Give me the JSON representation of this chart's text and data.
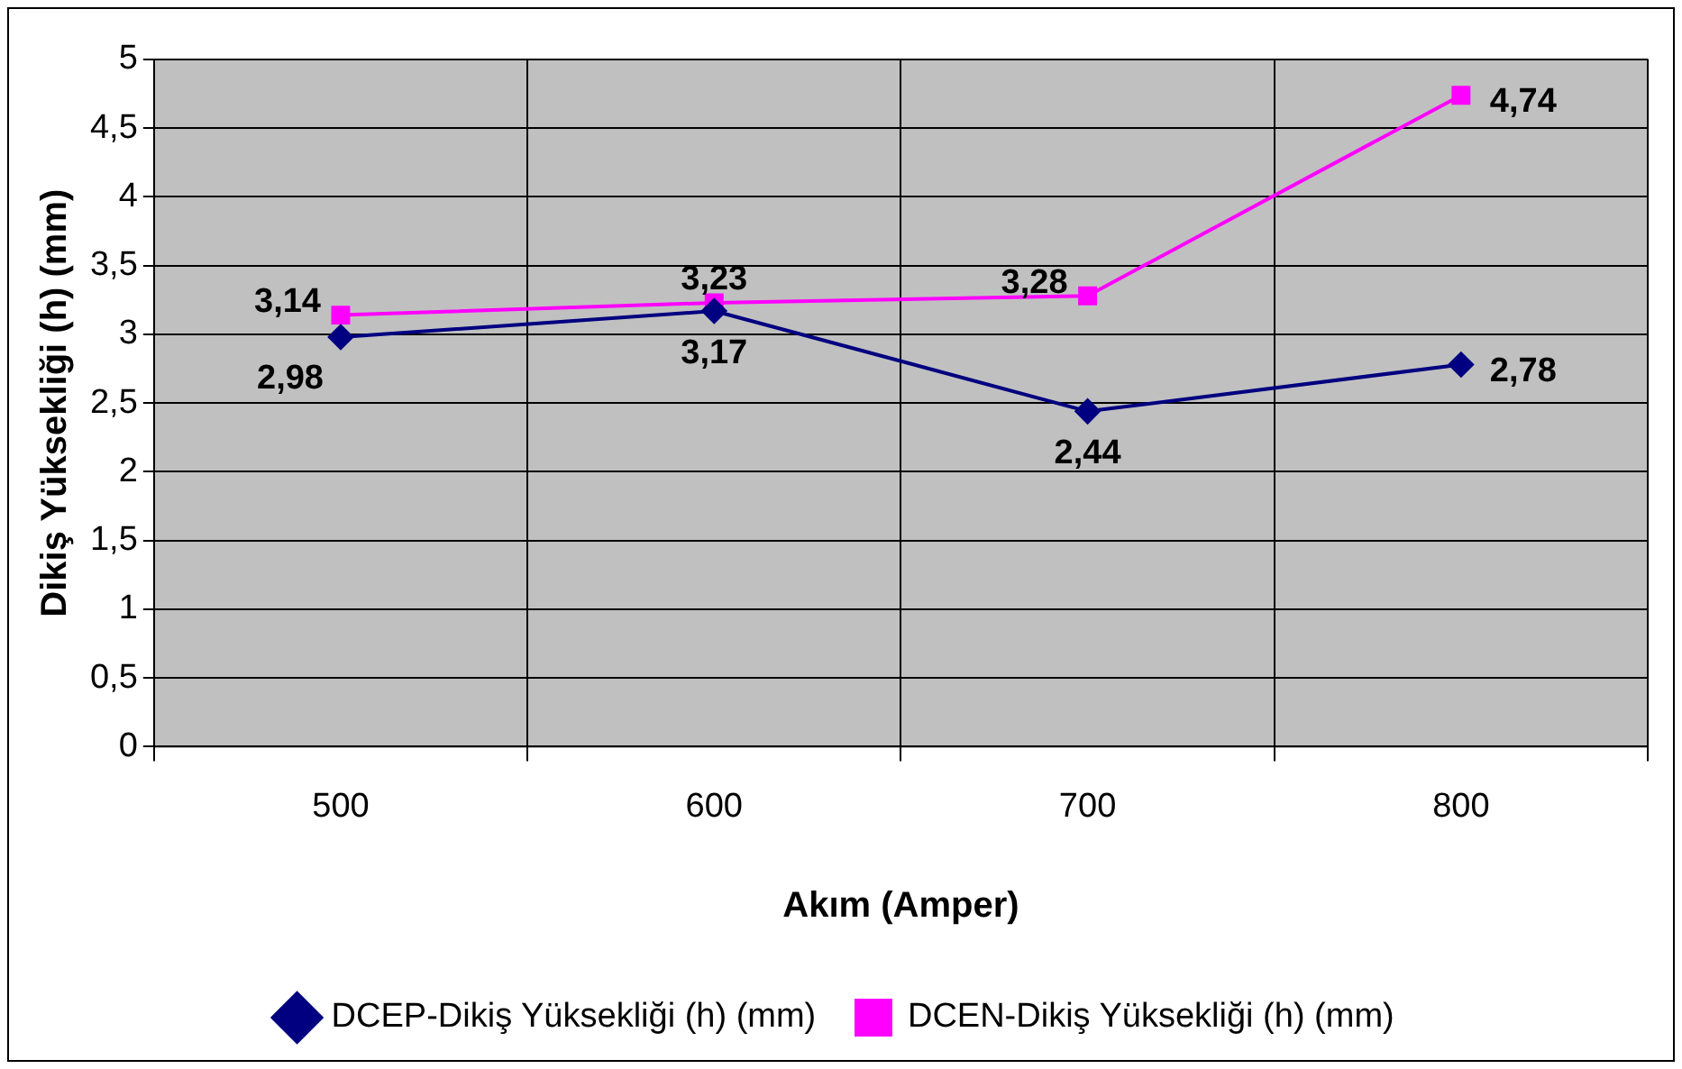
{
  "chart_data": {
    "type": "line",
    "xlabel": "Akım (Amper)",
    "ylabel": "Dikiş Yüksekliği (h) (mm)",
    "categories": [
      "500",
      "600",
      "700",
      "800"
    ],
    "series": [
      {
        "name": "DCEP-Dikiş Yüksekliği (h) (mm)",
        "color": "#000080",
        "marker": "diamond",
        "values": [
          2.98,
          3.17,
          2.44,
          2.78
        ],
        "value_labels": [
          "2,98",
          "3,17",
          "2,44",
          "2,78"
        ]
      },
      {
        "name": "DCEN-Dikiş Yüksekliği (h) (mm)",
        "color": "#ff00ff",
        "marker": "square",
        "values": [
          3.14,
          3.23,
          3.28,
          4.74
        ],
        "value_labels": [
          "3,14",
          "3,23",
          "3,28",
          "4,74"
        ]
      }
    ],
    "ylim": [
      0,
      5
    ],
    "yticks": [
      0,
      {
        "value": 0.5,
        "label": "0,5"
      },
      1,
      {
        "value": 1.5,
        "label": "1,5"
      },
      2,
      {
        "value": 2.5,
        "label": "2,5"
      },
      3,
      {
        "value": 3.5,
        "label": "3,5"
      },
      4,
      {
        "value": 4.5,
        "label": "4,5"
      },
      5
    ],
    "grid": true,
    "legend": "bottom"
  }
}
